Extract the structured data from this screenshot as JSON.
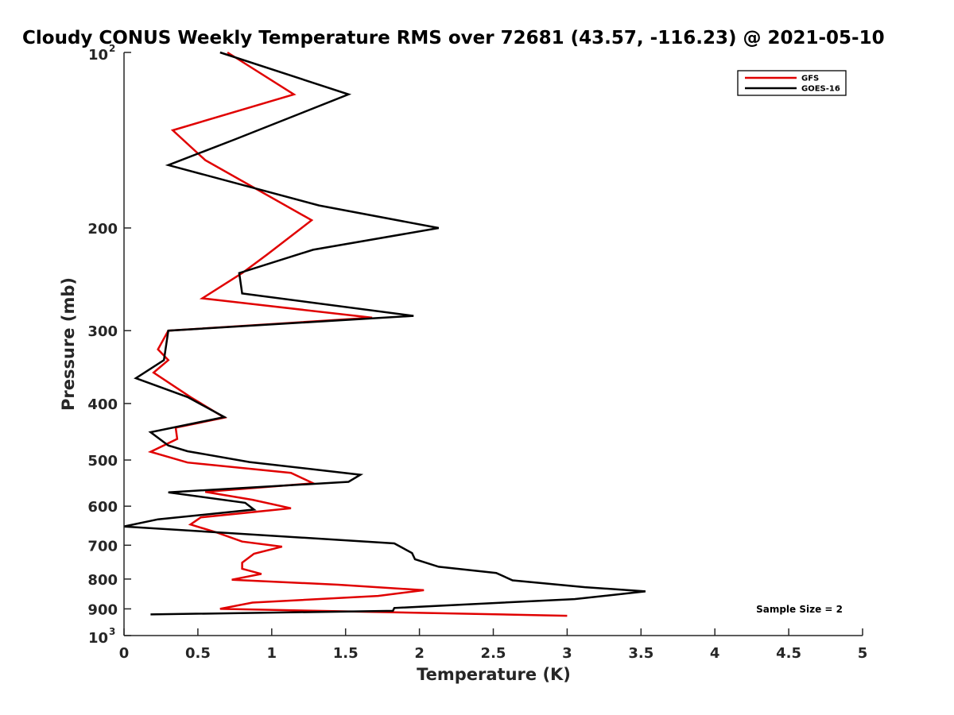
{
  "chart_data": {
    "type": "line",
    "title": "Cloudy CONUS Weekly Temperature RMS over 72681 (43.57, -116.23) @ 2021-05-10",
    "xlabel": "Temperature (K)",
    "ylabel": "Pressure (mb)",
    "xlim": [
      0,
      5
    ],
    "ylim": [
      100,
      1000
    ],
    "y_scale": "log",
    "y_reversed": true,
    "x_ticks": [
      "0",
      "0.5",
      "1",
      "1.5",
      "2",
      "2.5",
      "3",
      "3.5",
      "4",
      "4.5",
      "5"
    ],
    "y_ticks": [
      {
        "value": 100,
        "base": "10",
        "exp": "2"
      },
      {
        "value": 200,
        "label": "200"
      },
      {
        "value": 300,
        "label": "300"
      },
      {
        "value": 400,
        "label": "400"
      },
      {
        "value": 500,
        "label": "500"
      },
      {
        "value": 600,
        "label": "600"
      },
      {
        "value": 700,
        "label": "700"
      },
      {
        "value": 800,
        "label": "800"
      },
      {
        "value": 900,
        "label": "900"
      },
      {
        "value": 1000,
        "base": "10",
        "exp": "3"
      }
    ],
    "grid": false,
    "legend_position": "top-right",
    "annotation": "Sample Size = 2",
    "series": [
      {
        "name": "GFS",
        "color": "#e00000",
        "points": [
          [
            0.7,
            100
          ],
          [
            1.15,
            118
          ],
          [
            0.33,
            136
          ],
          [
            0.55,
            153
          ],
          [
            1.27,
            194
          ],
          [
            0.97,
            222
          ],
          [
            0.8,
            239
          ],
          [
            0.53,
            264
          ],
          [
            1.68,
            285
          ],
          [
            0.3,
            300
          ],
          [
            0.23,
            323
          ],
          [
            0.3,
            337
          ],
          [
            0.2,
            354
          ],
          [
            0.45,
            390
          ],
          [
            0.68,
            423
          ],
          [
            0.35,
            440
          ],
          [
            0.36,
            460
          ],
          [
            0.18,
            484
          ],
          [
            0.43,
            505
          ],
          [
            1.13,
            526
          ],
          [
            1.28,
            548
          ],
          [
            0.55,
            567
          ],
          [
            0.87,
            585
          ],
          [
            1.13,
            605
          ],
          [
            0.52,
            627
          ],
          [
            0.45,
            645
          ],
          [
            0.63,
            666
          ],
          [
            0.8,
            690
          ],
          [
            1.07,
            704
          ],
          [
            0.88,
            724
          ],
          [
            0.8,
            750
          ],
          [
            0.8,
            768
          ],
          [
            0.93,
            784
          ],
          [
            0.73,
            802
          ],
          [
            1.45,
            818
          ],
          [
            2.03,
            836
          ],
          [
            1.72,
            855
          ],
          [
            0.87,
            878
          ],
          [
            0.65,
            900
          ],
          [
            3.0,
            925
          ]
        ]
      },
      {
        "name": "GOES-16",
        "color": "#000000",
        "points": [
          [
            0.65,
            100
          ],
          [
            1.52,
            118
          ],
          [
            0.75,
            141
          ],
          [
            0.3,
            156
          ],
          [
            1.32,
            183
          ],
          [
            2.13,
            200
          ],
          [
            1.28,
            218
          ],
          [
            0.78,
            239
          ],
          [
            0.8,
            259
          ],
          [
            1.96,
            283
          ],
          [
            0.3,
            300
          ],
          [
            0.27,
            337
          ],
          [
            0.08,
            362
          ],
          [
            0.43,
            390
          ],
          [
            0.68,
            422
          ],
          [
            0.18,
            448
          ],
          [
            0.3,
            472
          ],
          [
            0.43,
            483
          ],
          [
            0.85,
            504
          ],
          [
            1.6,
            530
          ],
          [
            1.52,
            545
          ],
          [
            0.3,
            568
          ],
          [
            0.82,
            592
          ],
          [
            0.88,
            608
          ],
          [
            0.23,
            632
          ],
          [
            0.0,
            650
          ],
          [
            1.83,
            695
          ],
          [
            1.95,
            722
          ],
          [
            1.97,
            740
          ],
          [
            2.13,
            762
          ],
          [
            2.52,
            781
          ],
          [
            2.63,
            804
          ],
          [
            3.12,
            826
          ],
          [
            3.53,
            840
          ],
          [
            3.05,
            866
          ],
          [
            1.83,
            897
          ],
          [
            1.82,
            907
          ],
          [
            0.18,
            920
          ]
        ]
      }
    ]
  }
}
